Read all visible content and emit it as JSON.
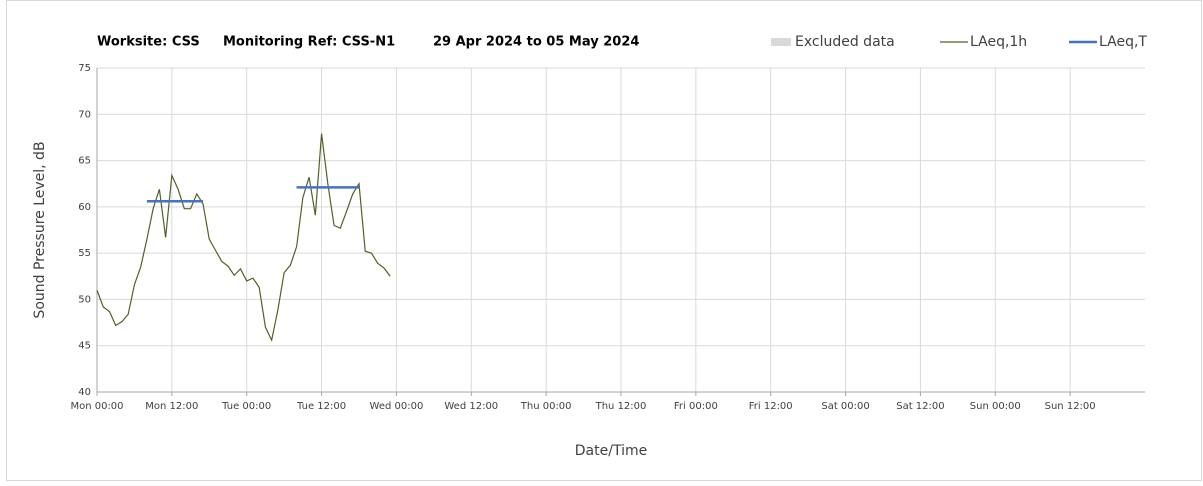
{
  "chart_data": {
    "type": "line",
    "title_parts": [
      "Worksite: CSS",
      "Monitoring Ref: CSS-N1",
      "29 Apr 2024 to 05 May 2024"
    ],
    "xlabel": "Date/Time",
    "ylabel": "Sound Pressure Level, dB",
    "xlim": [
      0,
      168
    ],
    "ylim": [
      40,
      75
    ],
    "xticks": [
      {
        "value": 0,
        "label": "Mon 00:00"
      },
      {
        "value": 12,
        "label": "Mon 12:00"
      },
      {
        "value": 24,
        "label": "Tue 00:00"
      },
      {
        "value": 36,
        "label": "Tue 12:00"
      },
      {
        "value": 48,
        "label": "Wed 00:00"
      },
      {
        "value": 60,
        "label": "Wed 12:00"
      },
      {
        "value": 72,
        "label": "Thu 00:00"
      },
      {
        "value": 84,
        "label": "Thu 12:00"
      },
      {
        "value": 96,
        "label": "Fri 00:00"
      },
      {
        "value": 108,
        "label": "Fri 12:00"
      },
      {
        "value": 120,
        "label": "Sat 00:00"
      },
      {
        "value": 132,
        "label": "Sat 12:00"
      },
      {
        "value": 144,
        "label": "Sun 00:00"
      },
      {
        "value": 156,
        "label": "Sun 12:00"
      }
    ],
    "yticks": [
      40,
      45,
      50,
      55,
      60,
      65,
      70,
      75
    ],
    "grid": true,
    "legend": "top-right",
    "series": [
      {
        "name": "Excluded data",
        "color": "#d9d9d9",
        "x": [],
        "values": []
      },
      {
        "name": "LAeq,1h",
        "color": "#4f6228",
        "x": [
          0,
          1,
          2,
          3,
          4,
          5,
          6,
          7,
          8,
          9,
          10,
          11,
          12,
          13,
          14,
          15,
          16,
          17,
          18,
          19,
          20,
          21,
          22,
          23,
          24,
          25,
          26,
          27,
          28,
          29,
          30,
          31,
          32,
          33,
          34,
          35,
          36,
          37,
          38,
          39,
          40,
          41,
          42,
          43,
          44,
          45,
          46,
          47
        ],
        "values": [
          51,
          49.2,
          48.7,
          47.2,
          47.6,
          48.4,
          51.6,
          53.5,
          56.5,
          59.8,
          61.9,
          56.7,
          63.4,
          61.9,
          59.8,
          59.8,
          61.4,
          60.3,
          56.5,
          55.3,
          54.1,
          53.6,
          52.6,
          53.3,
          52,
          52.3,
          51.3,
          47,
          45.6,
          48.9,
          52.9,
          53.7,
          55.7,
          61,
          63.2,
          59.1,
          67.9,
          62.5,
          58,
          57.7,
          59.5,
          61.4,
          62.5,
          55.2,
          55,
          53.9,
          53.4,
          52.5
        ]
      },
      {
        "name": "LAeq,T",
        "color": "#4472c4",
        "x": [
          8,
          17,
          null,
          32,
          42
        ],
        "values": [
          60.6,
          60.6,
          null,
          62.1,
          62.1
        ]
      }
    ]
  }
}
